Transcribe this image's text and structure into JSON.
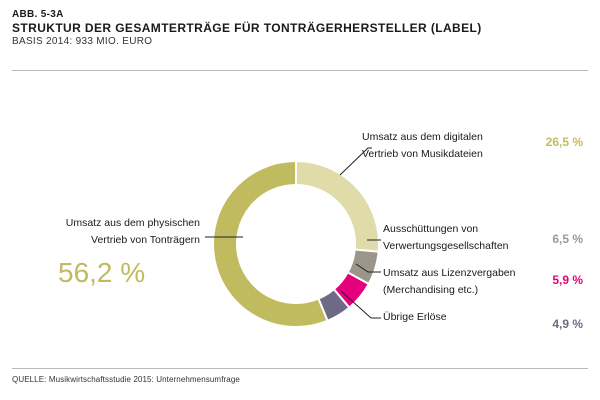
{
  "header": {
    "fig_label": "ABB. 5-3A",
    "title": "STRUKTUR DER GESAMTERTRÄGE FÜR TONTRÄGERHERSTELLER (LABEL)",
    "subtitle": "BASIS 2014: 933 MIO. EURO"
  },
  "source": "QUELLE: Musikwirtschaftsstudie 2015: Unternehmensumfrage",
  "chart_data": {
    "type": "pie",
    "variant": "donut",
    "unit": "%",
    "slices": [
      {
        "label_lines": [
          "Umsatz aus dem digitalen",
          "Vertrieb von Musikdateien"
        ],
        "value": 26.5,
        "value_label": "26,5 %",
        "color": "#e0dcaa",
        "value_color": "#c4bc5c"
      },
      {
        "label_lines": [
          "Ausschüttungen von",
          "Verwertungsgesellschaften"
        ],
        "value": 6.5,
        "value_label": "6,5 %",
        "color": "#9c958a",
        "value_color": "#9a9a9a"
      },
      {
        "label_lines": [
          "Umsatz aus Lizenzvergaben",
          "(Merchandising etc.)"
        ],
        "value": 5.9,
        "value_label": "5,9 %",
        "color": "#e5007e",
        "value_color": "#e5007e"
      },
      {
        "label_lines": [
          "Übrige Erlöse"
        ],
        "value": 4.9,
        "value_label": "4,9 %",
        "color": "#6e6a86",
        "value_color": "#6b6b80"
      },
      {
        "label_lines": [
          "Umsatz aus dem physischen",
          "Vertrieb von Tonträgern"
        ],
        "value": 56.2,
        "value_label": "56,2 %",
        "color": "#c1bb60",
        "value_color": "#c1bb60"
      }
    ]
  }
}
